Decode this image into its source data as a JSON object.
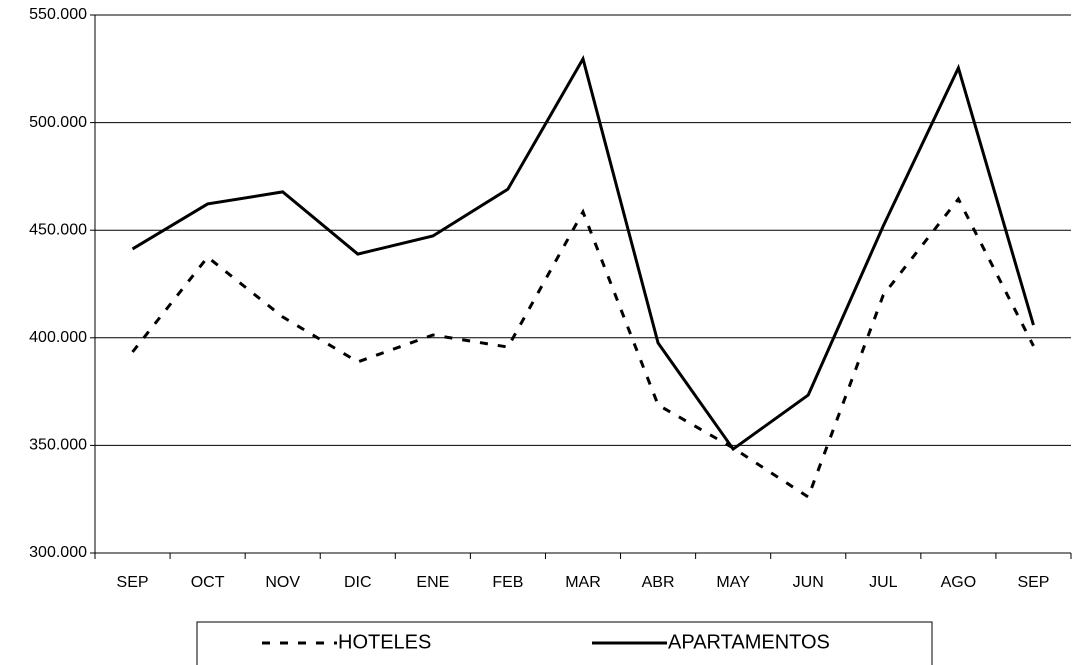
{
  "chart_data": {
    "type": "line",
    "categories": [
      "SEP",
      "OCT",
      "NOV",
      "DIC",
      "ENE",
      "FEB",
      "MAR",
      "ABR",
      "MAY",
      "JUN",
      "JUL",
      "AGO",
      "SEP"
    ],
    "series": [
      {
        "name": "HOTELES",
        "color": "#000000",
        "line_style": "dashed",
        "values": [
          393400,
          437500,
          409700,
          388800,
          401300,
          395700,
          458500,
          368800,
          348800,
          326000,
          419900,
          464500,
          396200
        ]
      },
      {
        "name": "APARTAMENTOS",
        "color": "#000000",
        "line_style": "solid",
        "values": [
          441300,
          462200,
          467800,
          438900,
          447300,
          469100,
          529600,
          397600,
          348300,
          373400,
          452000,
          525400,
          405900
        ]
      }
    ],
    "ylim": [
      300000,
      550000
    ],
    "yticks": [
      {
        "value": 300000,
        "label": "300.000"
      },
      {
        "value": 350000,
        "label": "350.000"
      },
      {
        "value": 400000,
        "label": "400.000"
      },
      {
        "value": 450000,
        "label": "450.000"
      },
      {
        "value": 500000,
        "label": "500.000"
      },
      {
        "value": 550000,
        "label": "550.000"
      }
    ],
    "grid": true,
    "legend": "bottom"
  }
}
